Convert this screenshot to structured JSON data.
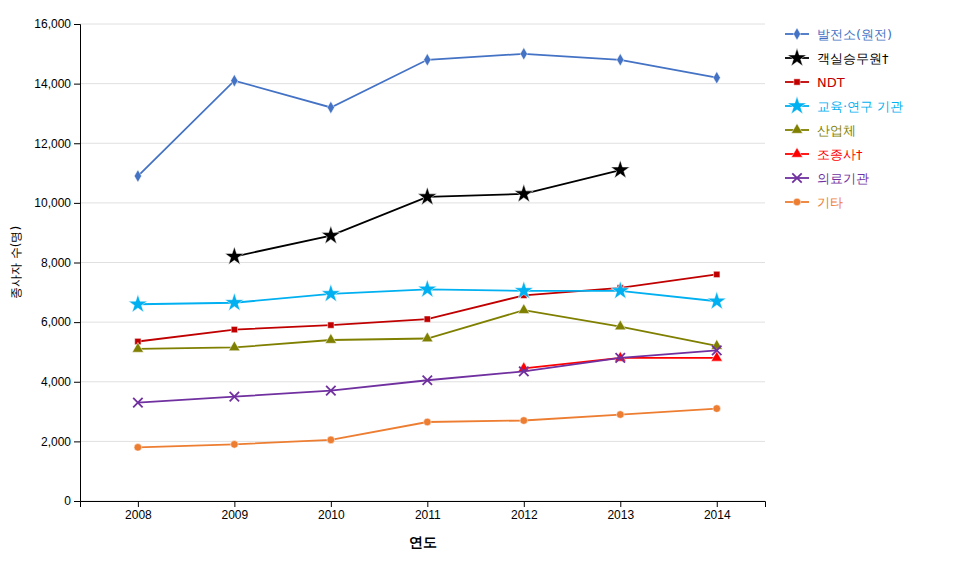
{
  "chart_data": {
    "type": "line",
    "x": [
      2008,
      2009,
      2010,
      2011,
      2012,
      2013,
      2014
    ],
    "series": [
      {
        "name": "발전소(원전)",
        "color": "#4472C4",
        "marker": "diamond",
        "values": [
          10900,
          14100,
          13200,
          14800,
          15000,
          14800,
          14200
        ]
      },
      {
        "name": "객실승무원†",
        "color": "#000000",
        "marker": "star",
        "values": [
          null,
          8200,
          8900,
          10200,
          10300,
          11100,
          null
        ]
      },
      {
        "name": "NDT",
        "color": "#C00000",
        "marker": "square",
        "values": [
          5350,
          5750,
          5900,
          6100,
          6900,
          7150,
          7600
        ]
      },
      {
        "name": "교육·연구 기관",
        "color": "#00B0F0",
        "marker": "star",
        "values": [
          6600,
          6650,
          6950,
          7100,
          7050,
          7050,
          6700
        ]
      },
      {
        "name": "산업체",
        "color": "#7F7F00",
        "marker": "triangle",
        "values": [
          5100,
          5150,
          5400,
          5450,
          6400,
          5850,
          5200
        ]
      },
      {
        "name": "조종사†",
        "color": "#FF0000",
        "marker": "triangle",
        "values": [
          null,
          null,
          null,
          null,
          4450,
          4800,
          4800
        ]
      },
      {
        "name": "의료기관",
        "color": "#7030A0",
        "marker": "x",
        "values": [
          3300,
          3500,
          3700,
          4050,
          4350,
          4800,
          5050
        ]
      },
      {
        "name": "기타",
        "color": "#ED7D31",
        "marker": "circle",
        "values": [
          1800,
          1900,
          2050,
          2650,
          2700,
          2900,
          3100
        ]
      }
    ],
    "xlabel": "연도",
    "ylabel": "종사자 수(명)",
    "xlim": [
      2007.4,
      2014.5
    ],
    "xticks": [
      2008,
      2009,
      2010,
      2011,
      2012,
      2013,
      2014
    ],
    "ylim": [
      0,
      16000
    ],
    "yticks": [
      0,
      {
        "value": 2000,
        "label": "2,000"
      },
      {
        "value": 4000,
        "label": "4,000"
      },
      {
        "value": 6000,
        "label": "6,000"
      },
      {
        "value": 8000,
        "label": "8,000"
      },
      {
        "value": 10000,
        "label": "10,000"
      },
      {
        "value": 12000,
        "label": "12,000"
      },
      {
        "value": 14000,
        "label": "14,000"
      },
      {
        "value": 16000,
        "label": "16,000"
      }
    ],
    "grid": true,
    "legend": "right"
  }
}
